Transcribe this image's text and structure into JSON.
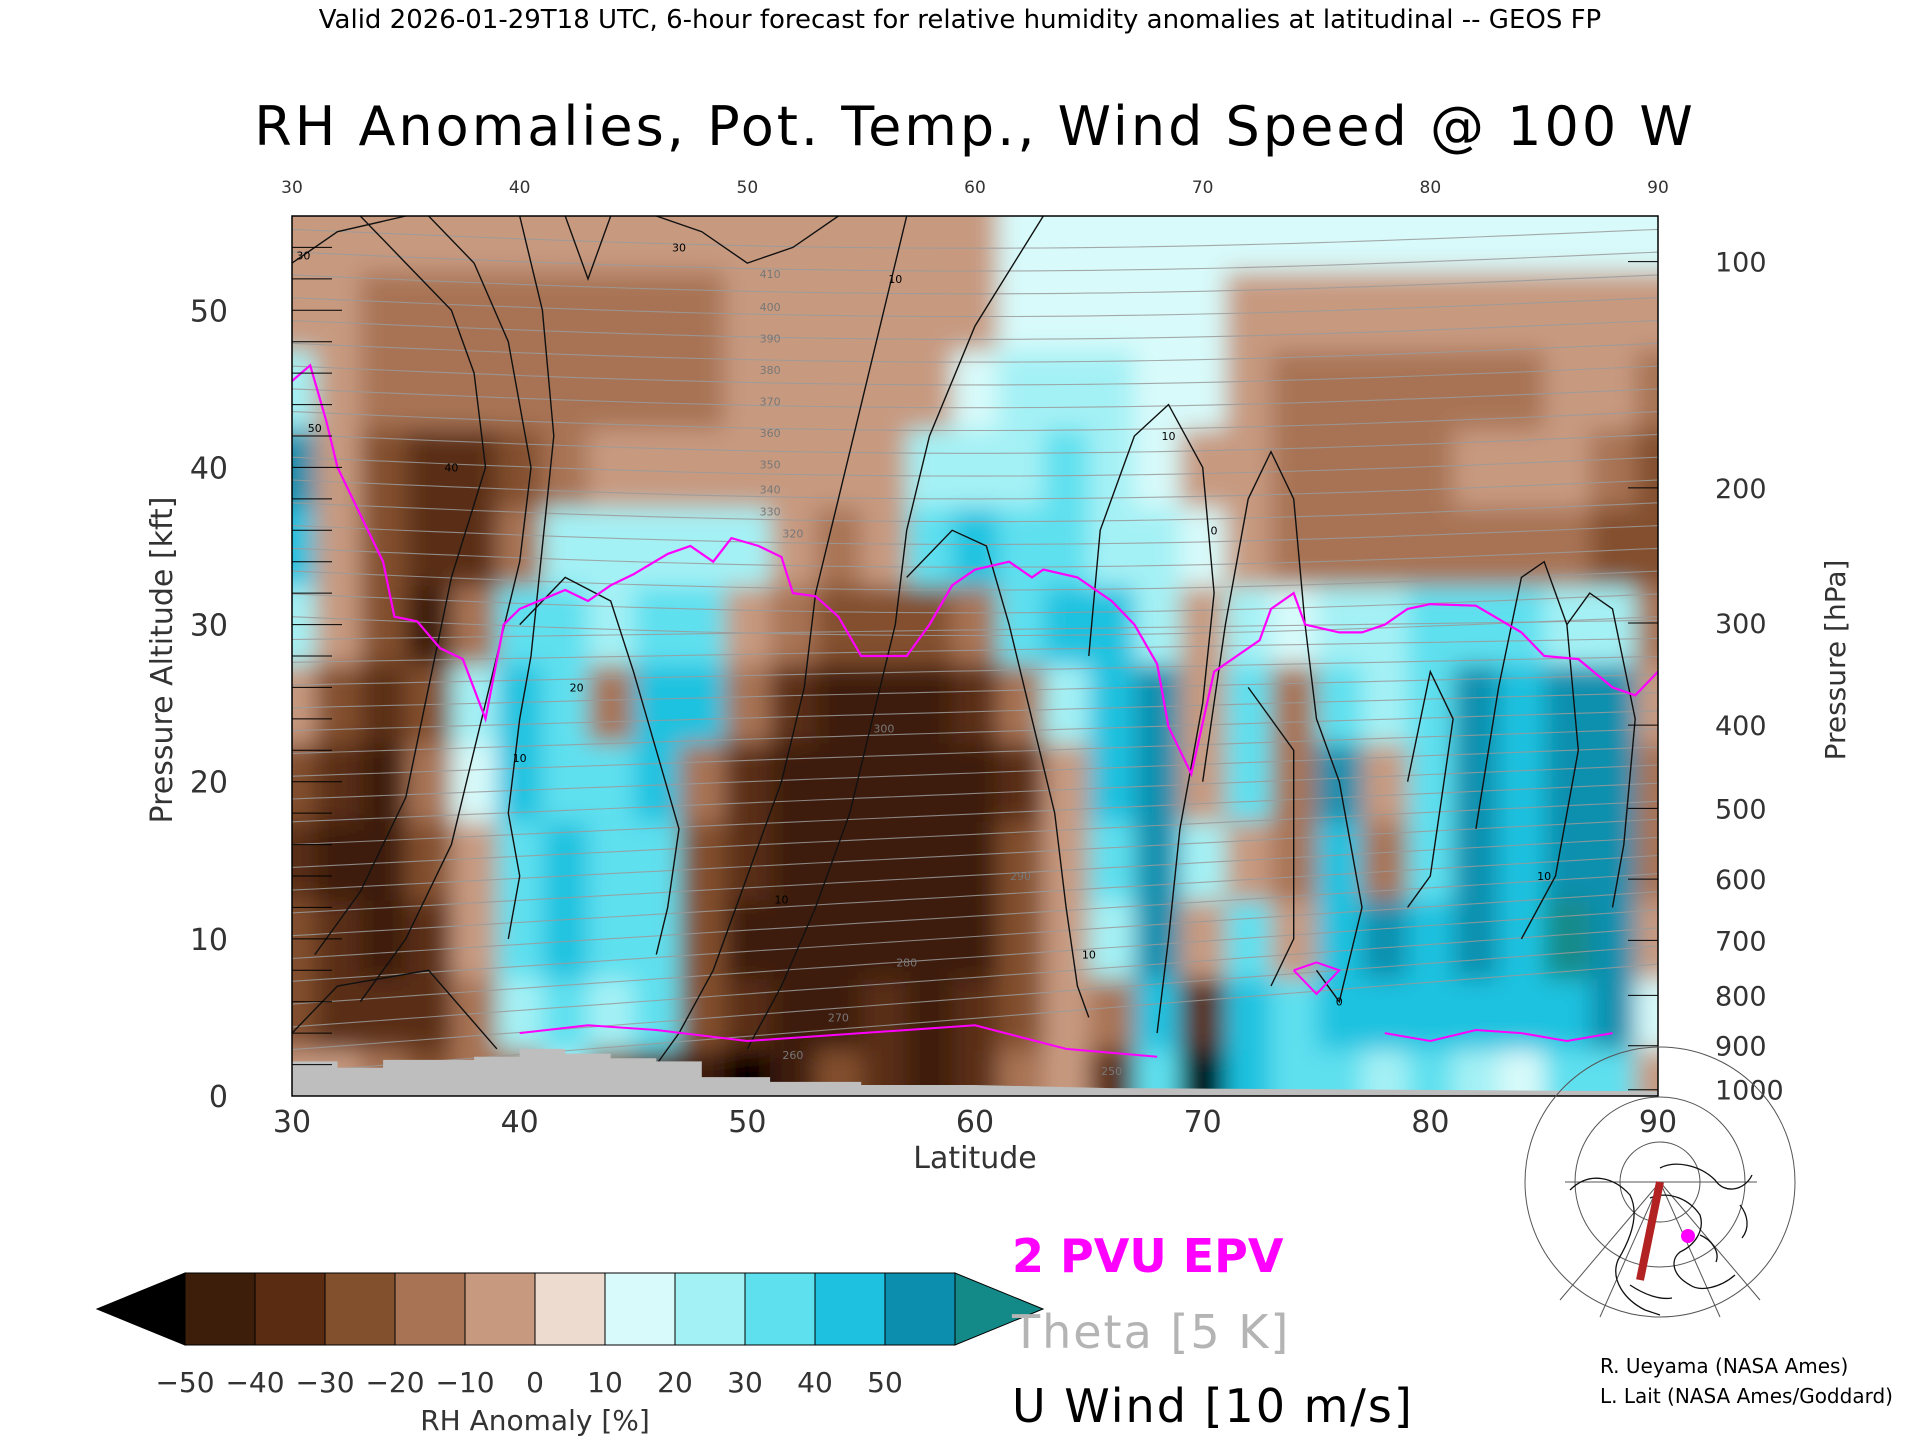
{
  "header": {
    "valid_line": "Valid 2026-01-29T18 UTC, 6-hour forecast for relative humidity anomalies at latitudinal -- GEOS FP",
    "title": "RH Anomalies, Pot. Temp., Wind Speed @ 100 W"
  },
  "chart_data": {
    "type": "heatmap",
    "title": "RH Anomalies, Pot. Temp., Wind Speed @ 100 W",
    "xlabel": "Latitude",
    "ylabel": "Pressure Altitude [kft]",
    "y2label": "Pressure [hPa]",
    "xlim": [
      30,
      90
    ],
    "ylim": [
      0,
      56
    ],
    "x_ticks": [
      30,
      40,
      50,
      60,
      70,
      80,
      90
    ],
    "y_ticks": [
      0,
      10,
      20,
      30,
      40,
      50
    ],
    "top_ticks": [
      30,
      40,
      50,
      60,
      70,
      80,
      90
    ],
    "pressure_ticks": [
      {
        "label": "100",
        "kft": 53.1
      },
      {
        "label": "200",
        "kft": 38.7
      },
      {
        "label": "300",
        "kft": 30.1
      },
      {
        "label": "400",
        "kft": 23.6
      },
      {
        "label": "500",
        "kft": 18.3
      },
      {
        "label": "600",
        "kft": 13.8
      },
      {
        "label": "700",
        "kft": 9.9
      },
      {
        "label": "800",
        "kft": 6.4
      },
      {
        "label": "900",
        "kft": 3.2
      },
      {
        "label": "1000",
        "kft": 0.4
      }
    ],
    "colorbar": {
      "label": "RH Anomaly [%]",
      "ticks": [
        "−50",
        "−40",
        "−30",
        "−20",
        "−10",
        "0",
        "10",
        "20",
        "30",
        "40",
        "50"
      ],
      "colors": [
        "#3c1e0a",
        "#5a2d12",
        "#83502e",
        "#a87354",
        "#c79a80",
        "#eedbd0",
        "#d8fafa",
        "#a4f1f5",
        "#5fe0ef",
        "#1ec2e0",
        "#0c8fae"
      ],
      "low_extend_color": "#000000",
      "high_extend_color": "#148a88"
    },
    "rh_anomaly_field": {
      "lat": [
        30,
        32,
        34,
        36,
        38,
        40,
        42,
        44,
        46,
        48,
        50,
        52,
        54,
        56,
        58,
        60,
        62,
        64,
        66,
        68,
        70,
        72,
        74,
        76,
        78,
        80,
        82,
        84,
        86,
        88,
        90
      ],
      "kft": [
        1,
        5,
        10,
        15,
        20,
        25,
        30,
        35,
        40,
        45,
        50,
        55
      ],
      "values": [
        [
          -10,
          -5,
          -20,
          -30,
          -20,
          -15,
          10,
          -30,
          -40,
          -45,
          -50,
          -45,
          -30,
          -40,
          -45,
          -40,
          -20,
          -10,
          -40,
          20,
          -55,
          30,
          25,
          20,
          10,
          20,
          10,
          5,
          20,
          20,
          -5
        ],
        [
          -30,
          -35,
          -40,
          -35,
          -20,
          10,
          25,
          15,
          20,
          -30,
          -40,
          -45,
          -45,
          -40,
          -45,
          -40,
          -30,
          -10,
          -20,
          30,
          -40,
          30,
          25,
          30,
          35,
          30,
          35,
          30,
          35,
          40,
          0
        ],
        [
          -30,
          -40,
          -45,
          -35,
          -10,
          20,
          30,
          20,
          20,
          -30,
          -45,
          -45,
          -45,
          -45,
          -45,
          -45,
          -30,
          -10,
          10,
          40,
          -10,
          20,
          -10,
          30,
          40,
          30,
          40,
          30,
          50,
          40,
          -10
        ],
        [
          -40,
          -45,
          -45,
          -30,
          -10,
          25,
          30,
          20,
          25,
          -30,
          -40,
          -45,
          -45,
          -45,
          -45,
          -45,
          -30,
          -10,
          20,
          45,
          10,
          -10,
          -15,
          30,
          -20,
          20,
          40,
          30,
          45,
          40,
          -20
        ],
        [
          -30,
          -40,
          -45,
          -20,
          5,
          30,
          25,
          20,
          30,
          -20,
          -40,
          -45,
          -45,
          -45,
          -45,
          -45,
          -35,
          -10,
          30,
          40,
          -10,
          20,
          -20,
          40,
          -10,
          20,
          40,
          30,
          40,
          40,
          -15
        ],
        [
          -10,
          -30,
          -40,
          -30,
          10,
          30,
          20,
          -20,
          30,
          30,
          -20,
          -40,
          -45,
          -45,
          -45,
          -40,
          -20,
          10,
          30,
          40,
          -5,
          20,
          -20,
          20,
          10,
          25,
          40,
          30,
          40,
          40,
          -10
        ],
        [
          10,
          -10,
          -30,
          -45,
          -20,
          20,
          20,
          10,
          25,
          20,
          -10,
          -15,
          -25,
          -30,
          -30,
          -20,
          20,
          30,
          30,
          10,
          -5,
          10,
          5,
          10,
          15,
          20,
          25,
          20,
          15,
          10,
          -15
        ],
        [
          30,
          -10,
          -30,
          -40,
          -40,
          -20,
          10,
          15,
          15,
          10,
          10,
          -5,
          -15,
          -10,
          20,
          30,
          25,
          25,
          15,
          10,
          5,
          -5,
          -20,
          -15,
          -20,
          -20,
          -20,
          -20,
          -20,
          -25,
          -30
        ],
        [
          40,
          -5,
          -25,
          -35,
          -40,
          -30,
          -15,
          -10,
          -10,
          -5,
          -5,
          -10,
          -10,
          -5,
          10,
          15,
          15,
          20,
          10,
          5,
          -5,
          -10,
          -20,
          -20,
          -15,
          -15,
          -10,
          -10,
          -10,
          -15,
          -25
        ],
        [
          10,
          -5,
          -15,
          -20,
          -20,
          -20,
          -20,
          -20,
          -15,
          -15,
          -10,
          -10,
          -10,
          -10,
          -5,
          5,
          10,
          15,
          10,
          5,
          0,
          -10,
          -20,
          -20,
          -15,
          -15,
          -15,
          -15,
          -10,
          -10,
          -15
        ],
        [
          -5,
          -10,
          -15,
          -20,
          -20,
          -20,
          -20,
          -15,
          -15,
          -15,
          -10,
          -10,
          -5,
          -5,
          -5,
          -5,
          0,
          5,
          5,
          5,
          0,
          -5,
          -5,
          -10,
          -10,
          -10,
          -10,
          -10,
          -10,
          -10,
          -10
        ],
        [
          -5,
          -5,
          -10,
          -10,
          -10,
          -10,
          -10,
          -10,
          -10,
          -5,
          -5,
          -5,
          -5,
          -5,
          -5,
          -5,
          0,
          0,
          0,
          0,
          0,
          0,
          0,
          0,
          0,
          0,
          0,
          0,
          0,
          0,
          0
        ]
      ]
    },
    "series": [
      {
        "name": "2 PVU EPV",
        "color": "#ff00ff",
        "points": [
          [
            30,
            45.5
          ],
          [
            30.8,
            46.5
          ],
          [
            31.5,
            43
          ],
          [
            32,
            40
          ],
          [
            33,
            37
          ],
          [
            34,
            34
          ],
          [
            34.5,
            30.5
          ],
          [
            35.5,
            30.2
          ],
          [
            36.5,
            28.5
          ],
          [
            37.5,
            27.8
          ],
          [
            38.5,
            24
          ],
          [
            39.3,
            30
          ],
          [
            40,
            31
          ],
          [
            42,
            32.2
          ],
          [
            43,
            31.5
          ],
          [
            44,
            32.5
          ],
          [
            45,
            33.2
          ],
          [
            46.5,
            34.5
          ],
          [
            47.5,
            35
          ],
          [
            48.5,
            34
          ],
          [
            49.3,
            35.5
          ],
          [
            50.5,
            35
          ],
          [
            51.5,
            34.3
          ],
          [
            52,
            32
          ],
          [
            53,
            31.8
          ],
          [
            54,
            30.5
          ],
          [
            55,
            28
          ],
          [
            57,
            28
          ],
          [
            58,
            30
          ],
          [
            59,
            32.5
          ],
          [
            60,
            33.5
          ],
          [
            61.5,
            34
          ],
          [
            62.5,
            33
          ],
          [
            63,
            33.5
          ],
          [
            64.5,
            33
          ],
          [
            66,
            31.5
          ],
          [
            67,
            30
          ],
          [
            68,
            27.5
          ],
          [
            68.5,
            23.5
          ],
          [
            69.5,
            20.5
          ],
          [
            70.5,
            27
          ],
          [
            71.5,
            28
          ],
          [
            72.5,
            29
          ],
          [
            73,
            31
          ],
          [
            74,
            32
          ],
          [
            74.5,
            30
          ],
          [
            76,
            29.5
          ],
          [
            77,
            29.5
          ],
          [
            78,
            30
          ],
          [
            79,
            31
          ],
          [
            80,
            31.3
          ],
          [
            82,
            31.2
          ],
          [
            84,
            29.5
          ],
          [
            85,
            28
          ],
          [
            86.5,
            27.8
          ],
          [
            88,
            26
          ],
          [
            89,
            25.5
          ],
          [
            90,
            27
          ]
        ]
      },
      {
        "name": "Theta [5 K]",
        "color": "#a8a8a8",
        "labels": [
          "410",
          "400",
          "390",
          "380",
          "370",
          "360",
          "350",
          "340",
          "330",
          "320",
          "300",
          "290",
          "280",
          "270",
          "260",
          "250"
        ]
      },
      {
        "name": "U Wind [10 m/s]",
        "color": "#000000",
        "labels": [
          "10",
          "20",
          "30",
          "40",
          "50",
          "0"
        ]
      }
    ],
    "ground_mask_color": "#bebebe",
    "ground_profile": [
      [
        30,
        2.2
      ],
      [
        32,
        2.2
      ],
      [
        32,
        1.8
      ],
      [
        34,
        1.8
      ],
      [
        34,
        2.3
      ],
      [
        38,
        2.3
      ],
      [
        38,
        2.5
      ],
      [
        40,
        2.5
      ],
      [
        40,
        3.0
      ],
      [
        42,
        3.0
      ],
      [
        42,
        2.7
      ],
      [
        44,
        2.7
      ],
      [
        44,
        2.4
      ],
      [
        46,
        2.4
      ],
      [
        46,
        2.2
      ],
      [
        48,
        2.2
      ],
      [
        48,
        1.2
      ],
      [
        51,
        1.2
      ],
      [
        51,
        0.9
      ],
      [
        55,
        0.9
      ],
      [
        55,
        0.7
      ],
      [
        60,
        0.7
      ],
      [
        66,
        0.5
      ],
      [
        90,
        0.3
      ]
    ]
  },
  "legend": {
    "epv_label": "2 PVU EPV",
    "epv_color": "#ff00ff",
    "theta_label": "Theta [5 K]",
    "theta_color": "#b4b4b4",
    "wind_label": "U Wind [10 m/s]",
    "wind_color": "#000000"
  },
  "credits": {
    "line1": "R. Ueyama (NASA Ames)",
    "line2": "L. Lait (NASA Ames/Goddard)"
  },
  "inset_map": {
    "section_color": "#b22222",
    "marker_color": "#ff00ff"
  }
}
